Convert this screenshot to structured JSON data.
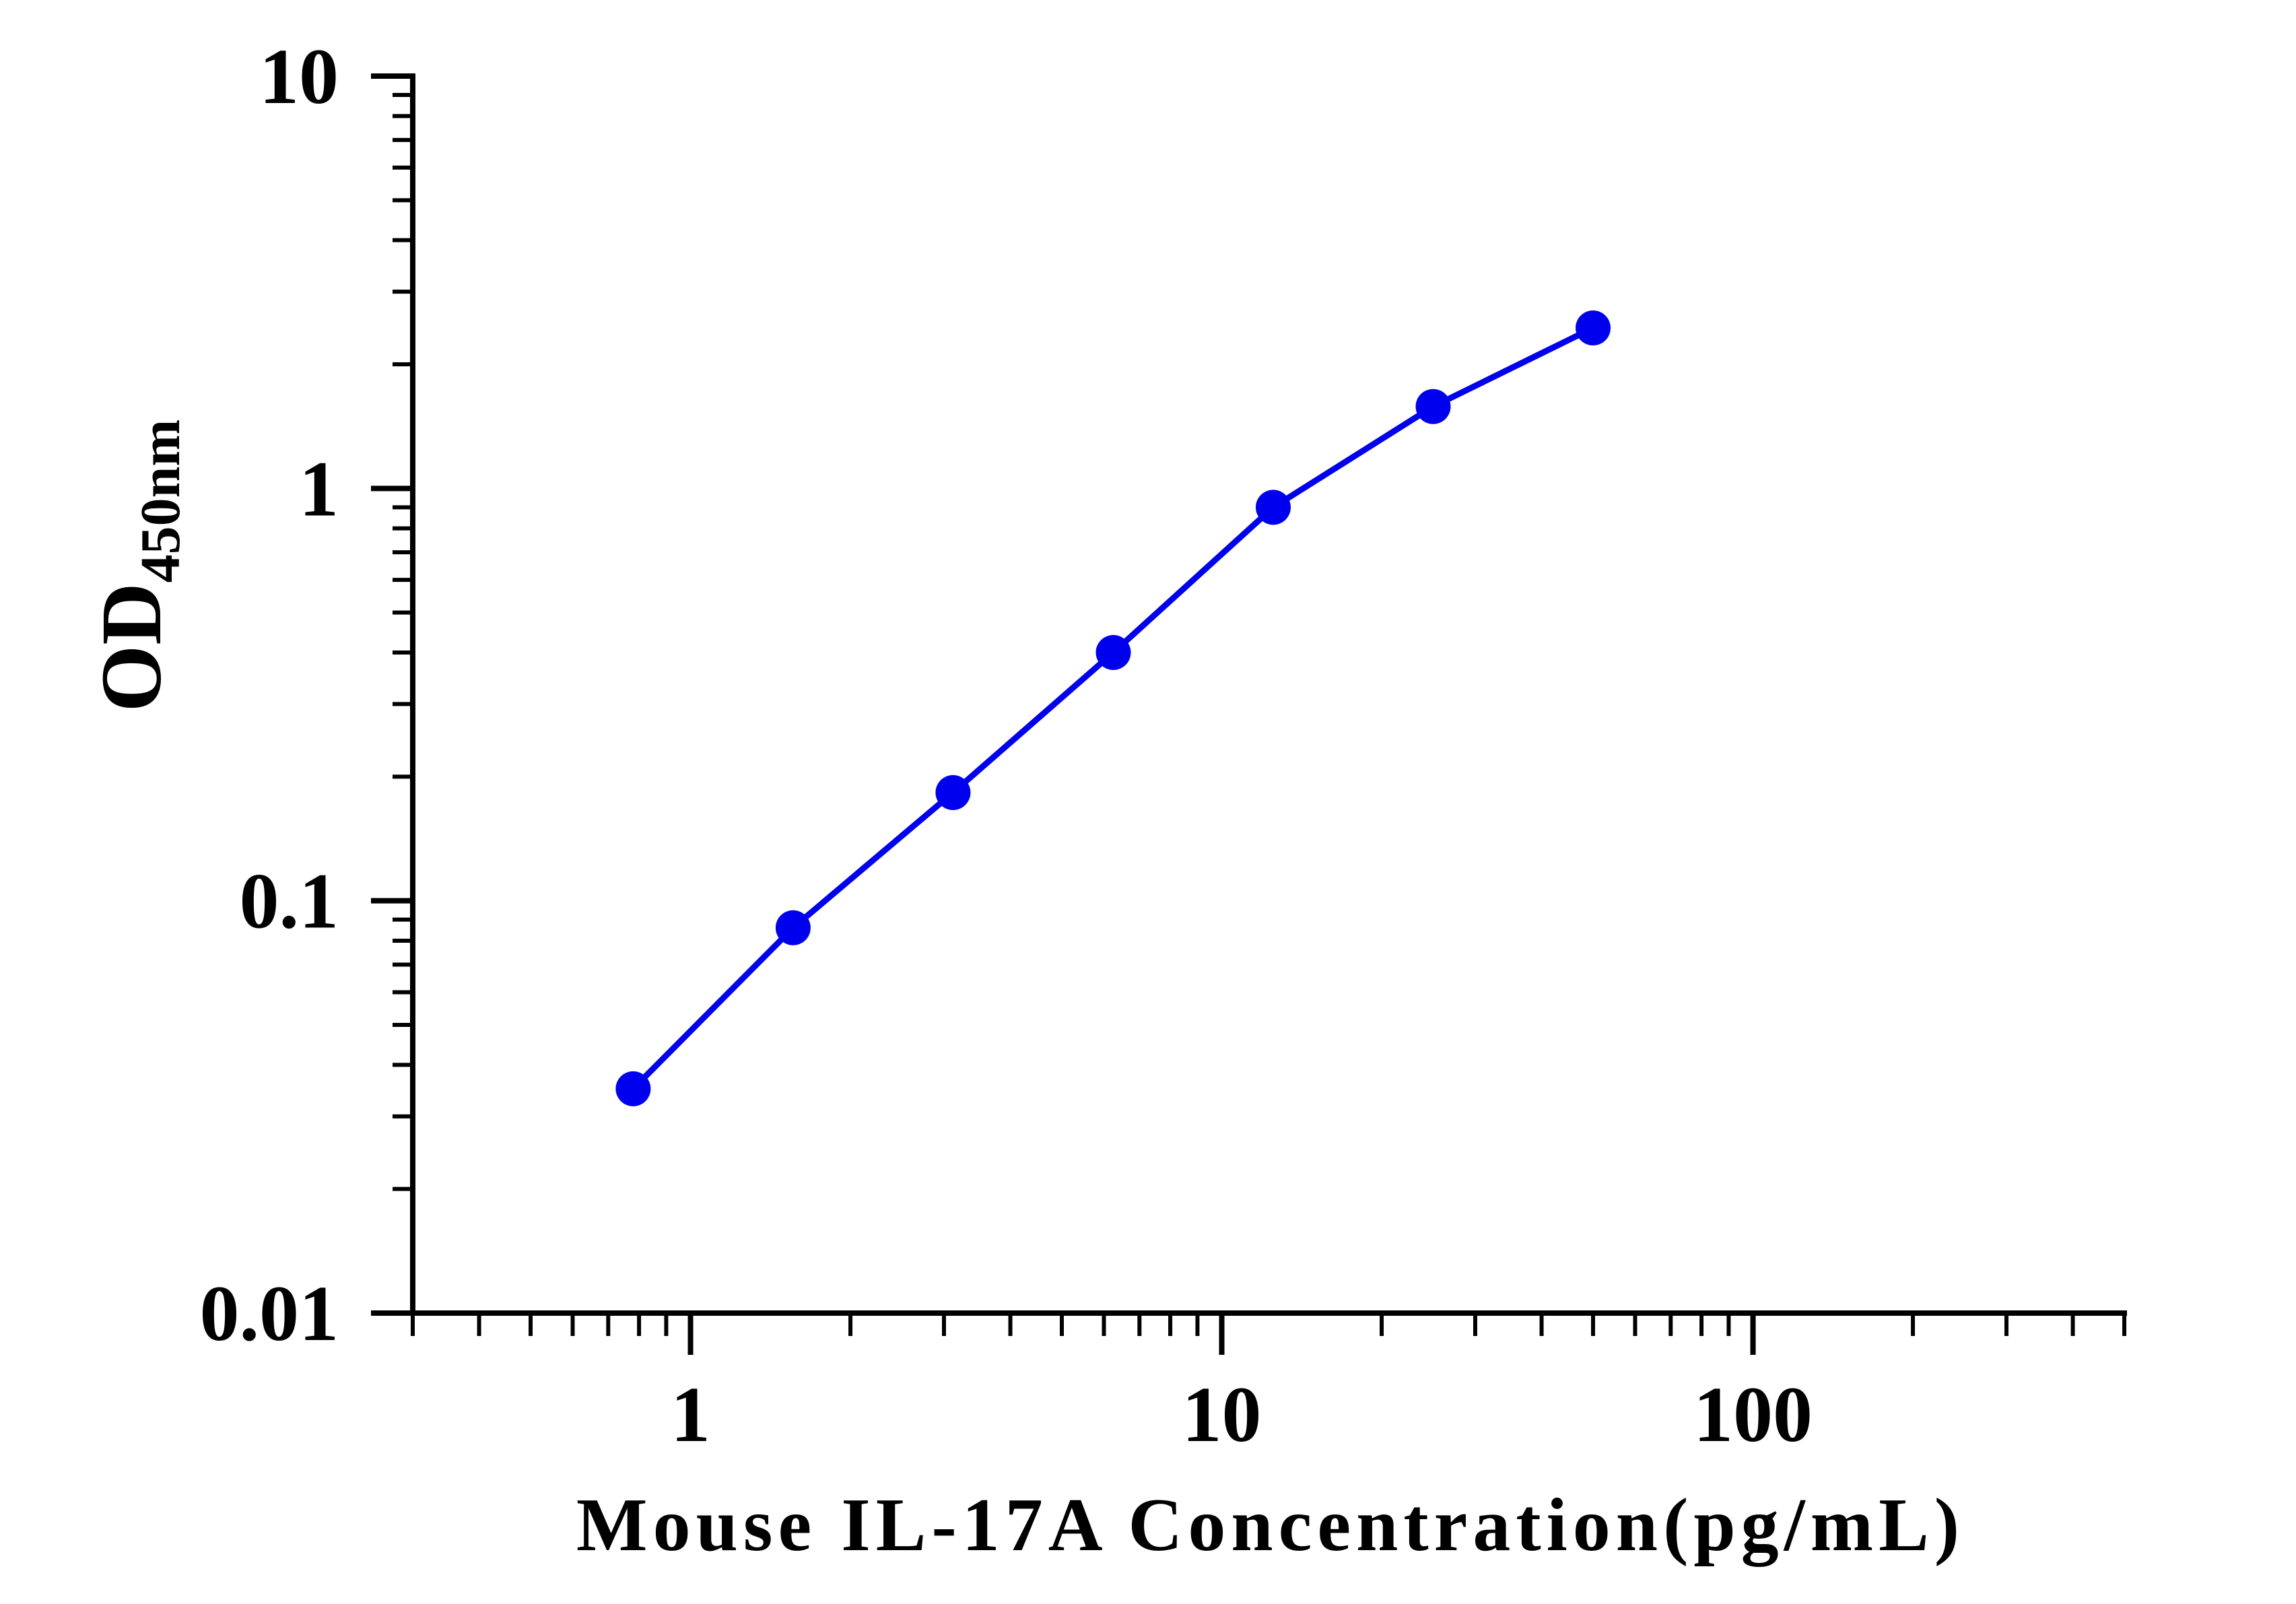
{
  "chart_data": {
    "type": "line",
    "title": "",
    "xlabel": "Mouse IL-17A Concentration(pg/mL)",
    "ylabel": {
      "main": "OD",
      "sub": "450nm"
    },
    "x_scale": "log",
    "y_scale": "log",
    "xlim": [
      0.3,
      500
    ],
    "ylim": [
      0.01,
      10
    ],
    "x_ticks": [
      {
        "value": 1,
        "label": "1"
      },
      {
        "value": 10,
        "label": "10"
      },
      {
        "value": 100,
        "label": "100"
      }
    ],
    "y_ticks": [
      {
        "value": 0.01,
        "label": "0.01"
      },
      {
        "value": 0.1,
        "label": "0.1"
      },
      {
        "value": 1,
        "label": "1"
      },
      {
        "value": 10,
        "label": "10"
      }
    ],
    "grid": false,
    "legend": "none",
    "series": [
      {
        "color": "#0000ee",
        "marker": "circle",
        "x": [
          0.78,
          1.56,
          3.12,
          6.25,
          12.5,
          25,
          50
        ],
        "y": [
          0.035,
          0.086,
          0.183,
          0.4,
          0.9,
          1.58,
          2.45
        ]
      }
    ]
  }
}
